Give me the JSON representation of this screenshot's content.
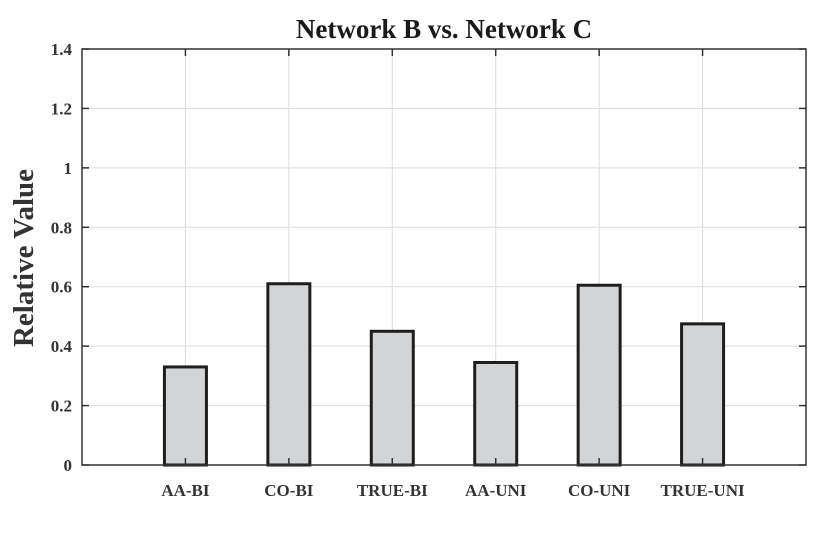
{
  "chart_data": {
    "type": "bar",
    "title": "Network B vs. Network C",
    "xlabel": "",
    "ylabel": "Relative Value",
    "categories": [
      "AA-BI",
      "CO-BI",
      "TRUE-BI",
      "AA-UNI",
      "CO-UNI",
      "TRUE-UNI"
    ],
    "values": [
      0.33,
      0.61,
      0.45,
      0.345,
      0.605,
      0.475
    ],
    "ylim": [
      0,
      1.4
    ],
    "yticks": [
      0,
      0.2,
      0.4,
      0.6,
      0.8,
      1,
      1.2,
      1.4
    ],
    "ytick_labels": [
      "0",
      "0.2",
      "0.4",
      "0.6",
      "0.8",
      "1",
      "1.2",
      "1.4"
    ],
    "grid": true,
    "colors": {
      "bar_fill": "#d3d4d6",
      "bar_edge": "#1e1e1e",
      "grid": "#dcdcdc",
      "axis": "#333333"
    }
  }
}
